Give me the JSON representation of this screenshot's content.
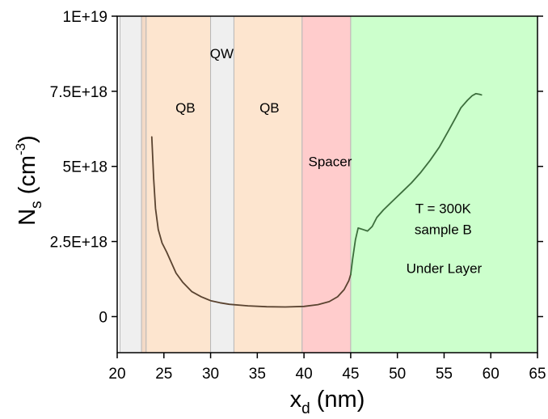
{
  "chart_data": {
    "type": "line",
    "title": "",
    "xlabel": {
      "main": "x",
      "sub": "d",
      "unit": " (nm)"
    },
    "ylabel": {
      "main": "N",
      "sub": "s",
      "unit_pre": " (cm",
      "unit_sup": "-3",
      "unit_post": ")"
    },
    "xlim": [
      20,
      65
    ],
    "ylim": [
      -1.2e+18,
      1e+19
    ],
    "x_ticks": [
      20,
      25,
      30,
      35,
      40,
      45,
      50,
      55,
      60,
      65
    ],
    "x_tick_labels": [
      "20",
      "25",
      "30",
      "35",
      "40",
      "45",
      "50",
      "55",
      "60",
      "65"
    ],
    "y_ticks": [
      0,
      2.5e+18,
      5e+18,
      7.5e+18,
      1e+19
    ],
    "y_tick_labels": [
      "0",
      "2.5E+18",
      "5E+18",
      "7.5E+18",
      "1E+19"
    ],
    "grid": false,
    "regions": [
      {
        "x0": 20.3,
        "x1": 22.6,
        "color": "#efefef",
        "label": ""
      },
      {
        "x0": 22.6,
        "x1": 23.1,
        "color": "#f3d9c6",
        "label": ""
      },
      {
        "x0": 23.1,
        "x1": 30.0,
        "color": "#fde5cf",
        "label": "QB",
        "label_x": 27.3,
        "label_y": 6.8e+18
      },
      {
        "x0": 30.0,
        "x1": 32.5,
        "color": "#efefef",
        "label": "QW",
        "label_x": 31.2,
        "label_y": 8.6e+18
      },
      {
        "x0": 32.5,
        "x1": 39.8,
        "color": "#fde5cf",
        "label": "QB",
        "label_x": 36.3,
        "label_y": 6.8e+18
      },
      {
        "x0": 39.8,
        "x1": 45.0,
        "color": "#ffcccc",
        "label": "Spacer",
        "label_x": 42.8,
        "label_y": 5e+18
      },
      {
        "x0": 45.0,
        "x1": 65.0,
        "color": "#ccffcc",
        "label": "Under Layer",
        "label_x": 55.0,
        "label_y": 1.45e+18
      }
    ],
    "region_edge_color": "#b8b8b8",
    "annotations": [
      {
        "text": "T = 300K",
        "x": 54.9,
        "y": 3.45e+18
      },
      {
        "text": "sample B",
        "x": 54.9,
        "y": 2.75e+18
      }
    ],
    "series": [
      {
        "segments": [
          {
            "color": "#5a4330",
            "points": [
              [
                23.7,
                5.98e+18
              ],
              [
                23.9,
                4.6e+18
              ],
              [
                24.1,
                3.6e+18
              ],
              [
                24.4,
                2.9e+18
              ],
              [
                24.8,
                2.45e+18
              ],
              [
                25.3,
                2.15e+18
              ],
              [
                25.8,
                1.8e+18
              ],
              [
                26.3,
                1.45e+18
              ],
              [
                27.0,
                1.15e+18
              ],
              [
                28.0,
                8.3e+17
              ],
              [
                29.0,
                6.6e+17
              ],
              [
                30.0,
                5.3e+17
              ],
              [
                31.0,
                4.6e+17
              ],
              [
                32.0,
                4.1e+17
              ],
              [
                34.0,
                3.6e+17
              ],
              [
                36.0,
                3.3e+17
              ],
              [
                38.0,
                3.2e+17
              ],
              [
                40.0,
                3.4e+17
              ],
              [
                41.5,
                4e+17
              ],
              [
                42.7,
                5e+17
              ],
              [
                43.6,
                6.6e+17
              ],
              [
                44.3,
                9e+17
              ],
              [
                44.8,
                1.2e+18
              ],
              [
                45.0,
                1.4e+18
              ]
            ]
          },
          {
            "color": "#3c6e3c",
            "points": [
              [
                45.0,
                1.4e+18
              ],
              [
                45.2,
                1.9e+18
              ],
              [
                45.5,
                2.55e+18
              ],
              [
                45.8,
                2.95e+18
              ],
              [
                46.3,
                2.9e+18
              ],
              [
                46.8,
                2.85e+18
              ],
              [
                47.3,
                3e+18
              ],
              [
                47.8,
                3.3e+18
              ],
              [
                48.5,
                3.55e+18
              ],
              [
                49.5,
                3.85e+18
              ],
              [
                50.5,
                4.15e+18
              ],
              [
                51.5,
                4.45e+18
              ],
              [
                52.5,
                4.8e+18
              ],
              [
                53.5,
                5.2e+18
              ],
              [
                54.5,
                5.65e+18
              ],
              [
                55.5,
                6.2e+18
              ],
              [
                56.2,
                6.6e+18
              ],
              [
                56.8,
                6.95e+18
              ],
              [
                57.5,
                7.2e+18
              ],
              [
                58.0,
                7.35e+18
              ],
              [
                58.4,
                7.42e+18
              ],
              [
                58.8,
                7.4e+18
              ],
              [
                59.0,
                7.38e+18
              ]
            ]
          }
        ]
      }
    ]
  }
}
